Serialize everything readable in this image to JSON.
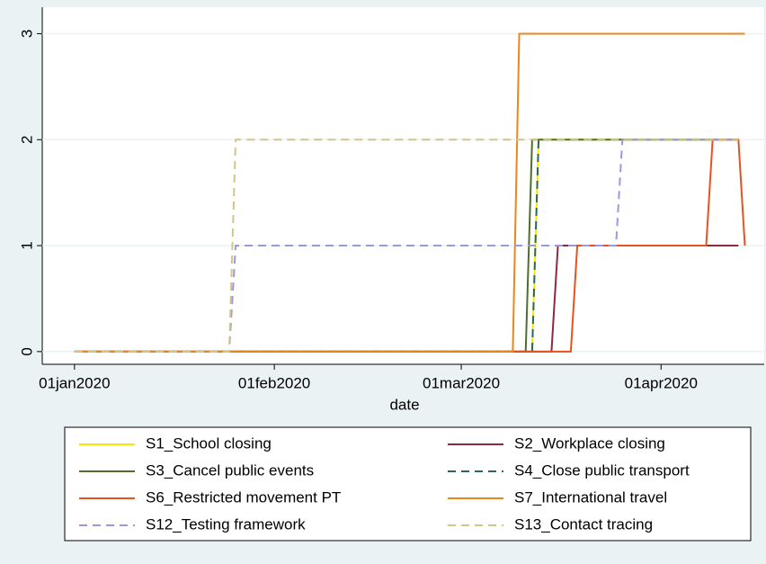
{
  "chart_data": {
    "type": "line",
    "xlabel": "date",
    "xlim": [
      21910,
      22022
    ],
    "ylim": [
      -0.12,
      3.25
    ],
    "xticks": [
      {
        "value": 21915,
        "label": "01jan2020"
      },
      {
        "value": 21946,
        "label": "01feb2020"
      },
      {
        "value": 21975,
        "label": "01mar2020"
      },
      {
        "value": 22006,
        "label": "01apr2020"
      }
    ],
    "yticks": [
      0,
      1,
      2,
      3
    ],
    "grid": true,
    "series": [
      {
        "name": "S1_School closing",
        "color": "#f2ea00",
        "style": "solid",
        "x": [
          21915,
          21986,
          21987,
          22018
        ],
        "values": [
          0,
          0,
          2,
          2
        ]
      },
      {
        "name": "S2_Workplace closing",
        "color": "#8c2a3e",
        "style": "solid",
        "x": [
          21915,
          21989,
          21990,
          22018
        ],
        "values": [
          0,
          0,
          1,
          1
        ]
      },
      {
        "name": "S3_Cancel public events",
        "color": "#4e6e2c",
        "style": "solid",
        "x": [
          21915,
          21985,
          21986,
          22018
        ],
        "values": [
          0,
          0,
          2,
          2
        ]
      },
      {
        "name": "S4_Close public transport",
        "color": "#2a6a55",
        "style": "dashed",
        "x": [
          21915,
          21986,
          21987,
          22018
        ],
        "values": [
          0,
          0,
          2,
          2
        ]
      },
      {
        "name": "S6_Restricted movement PT",
        "color": "#e8521e",
        "style": "solid",
        "x": [
          21915,
          21992,
          21993,
          22013,
          22014,
          22018,
          22019
        ],
        "values": [
          0,
          0,
          1,
          1,
          2,
          2,
          1
        ]
      },
      {
        "name": "S7_International travel",
        "color": "#e8881c",
        "style": "solid",
        "x": [
          21915,
          21983,
          21984,
          22019
        ],
        "values": [
          0,
          0,
          3,
          3
        ]
      },
      {
        "name": "S12_Testing framework",
        "color": "#9c98e0",
        "style": "dashed",
        "x": [
          21915,
          21939,
          21940,
          21999,
          22000,
          22018
        ],
        "values": [
          0,
          0,
          1,
          1,
          2,
          2
        ]
      },
      {
        "name": "S13_Contact tracing",
        "color": "#d4c488",
        "style": "dashed",
        "x": [
          21915,
          21939,
          21940,
          22018
        ],
        "values": [
          0,
          0,
          2,
          2
        ]
      }
    ]
  }
}
